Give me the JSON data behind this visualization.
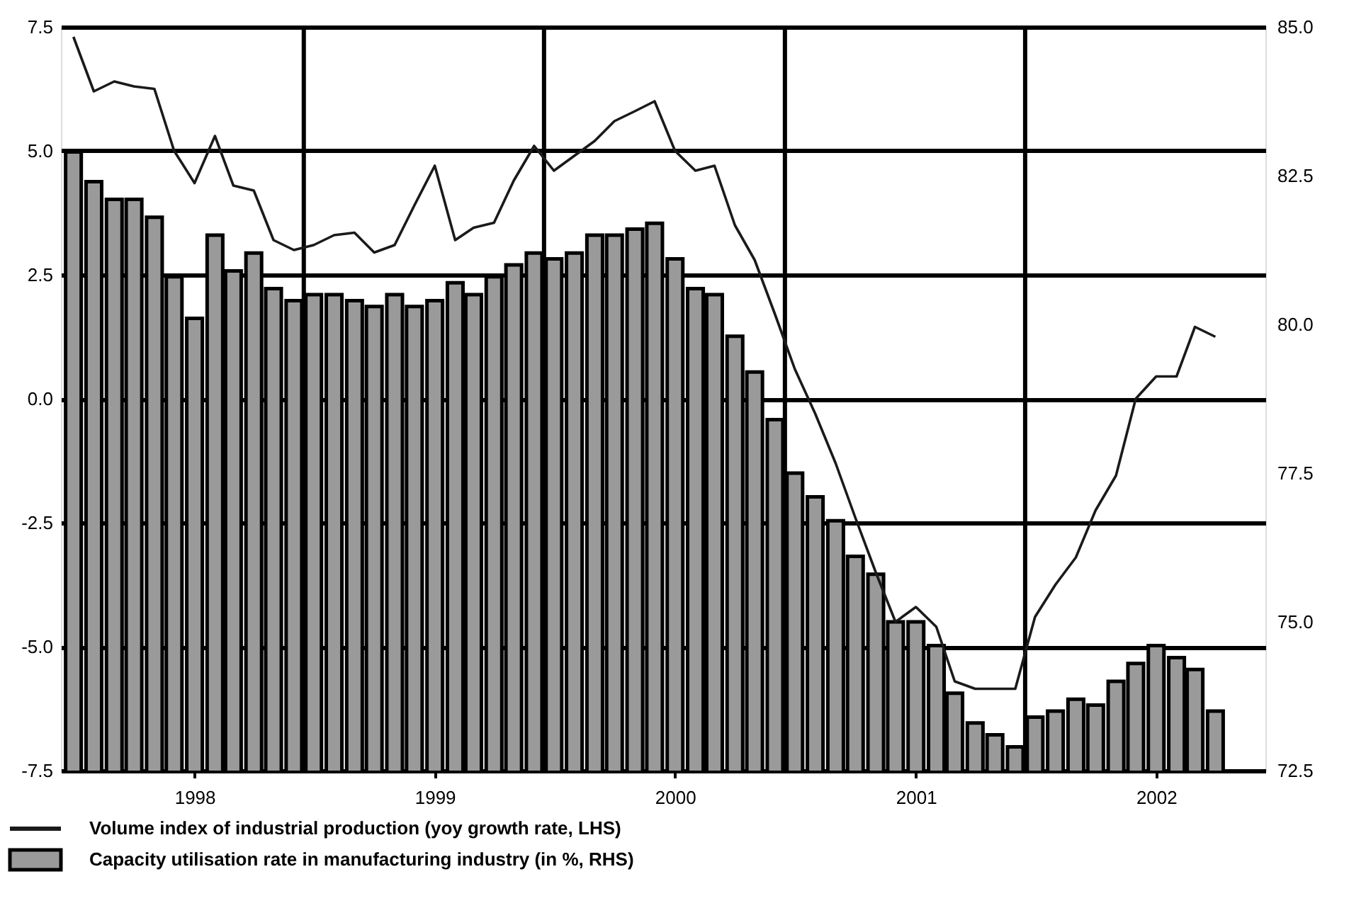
{
  "chart_data": {
    "type": "bar",
    "x": [
      "1997-07",
      "1997-08",
      "1997-09",
      "1997-10",
      "1997-11",
      "1997-12",
      "1998-01",
      "1998-02",
      "1998-03",
      "1998-04",
      "1998-05",
      "1998-06",
      "1998-07",
      "1998-08",
      "1998-09",
      "1998-10",
      "1998-11",
      "1998-12",
      "1999-01",
      "1999-02",
      "1999-03",
      "1999-04",
      "1999-05",
      "1999-06",
      "1999-07",
      "1999-08",
      "1999-09",
      "1999-10",
      "1999-11",
      "1999-12",
      "2000-01",
      "2000-02",
      "2000-03",
      "2000-04",
      "2000-05",
      "2000-06",
      "2000-07",
      "2000-08",
      "2000-09",
      "2000-10",
      "2000-11",
      "2000-12",
      "2001-01",
      "2001-02",
      "2001-03",
      "2001-04",
      "2001-05",
      "2001-06",
      "2001-07",
      "2001-08",
      "2001-09",
      "2001-10",
      "2001-11",
      "2001-12",
      "2002-01",
      "2002-02",
      "2002-03",
      "2002-04"
    ],
    "series": [
      {
        "name": "Capacity utilisation rate in manufacturing industry (in %, RHS)",
        "axis": "y2",
        "color": "#9a9a9a",
        "values": [
          82.9,
          82.4,
          82.1,
          82.1,
          81.8,
          80.8,
          80.1,
          81.5,
          80.9,
          81.2,
          80.6,
          80.4,
          80.5,
          80.5,
          80.4,
          80.3,
          80.5,
          80.3,
          80.4,
          80.7,
          80.5,
          80.8,
          81.0,
          81.2,
          81.1,
          81.2,
          81.5,
          81.5,
          81.6,
          81.7,
          81.1,
          80.6,
          80.5,
          79.8,
          79.2,
          78.4,
          77.5,
          77.1,
          76.7,
          76.1,
          75.8,
          75.0,
          75.0,
          74.6,
          73.8,
          73.3,
          73.1,
          72.9,
          73.4,
          73.5,
          73.7,
          73.6,
          74.0,
          74.3,
          74.6,
          74.4,
          74.2,
          73.5
        ]
      },
      {
        "name": "Volume index of industrial production (yoy growth rate, LHS)",
        "type": "line",
        "color": "#1a1a1a",
        "values": [
          7.3,
          6.2,
          6.4,
          6.3,
          6.25,
          5.0,
          4.35,
          5.3,
          4.3,
          4.2,
          3.2,
          3.0,
          3.1,
          3.3,
          3.35,
          2.95,
          3.1,
          3.9,
          4.7,
          3.2,
          3.45,
          3.55,
          4.4,
          5.1,
          4.6,
          4.9,
          5.2,
          5.6,
          5.8,
          6.0,
          5.0,
          4.6,
          4.7,
          3.5,
          2.8,
          1.7,
          0.6,
          -0.3,
          -1.3,
          -2.4,
          -3.5,
          -4.5,
          -4.2,
          -4.6,
          -5.7,
          -5.85,
          -5.85,
          -5.85,
          -4.4,
          -3.75,
          -3.2,
          -2.25,
          -1.55,
          0.0,
          0.45,
          0.45,
          1.45,
          1.25
        ]
      }
    ],
    "xlim": [
      "1997-06-12",
      "2002-06-16"
    ],
    "xticks": [
      {
        "value": "1998-01-01",
        "label": "1998"
      },
      {
        "value": "1999-01-01",
        "label": "1999"
      },
      {
        "value": "2000-01-01",
        "label": "2000"
      },
      {
        "value": "2001-01-01",
        "label": "2001"
      },
      {
        "value": "2002-01-01",
        "label": "2002"
      }
    ],
    "ref_lines": [
      {
        "axis": "x",
        "value": "1998-06-16",
        "color": "#000000"
      },
      {
        "axis": "x",
        "value": "1999-06-16",
        "color": "#000000"
      },
      {
        "axis": "x",
        "value": "2000-06-16",
        "color": "#000000"
      },
      {
        "axis": "x",
        "value": "2001-06-16",
        "color": "#000000"
      }
    ],
    "ylim": [
      -7.5,
      7.5
    ],
    "yticks": [
      {
        "value": -7.5,
        "label": "-7.5"
      },
      {
        "value": -5,
        "label": "-5.0"
      },
      {
        "value": -2.5,
        "label": "-2.5"
      },
      {
        "value": 0,
        "label": "0.0"
      },
      {
        "value": 2.5,
        "label": "2.5"
      },
      {
        "value": 5,
        "label": "5.0"
      },
      {
        "value": 7.5,
        "label": "7.5"
      }
    ],
    "y2lim": [
      72.5,
      85
    ],
    "y2ticks": [
      {
        "value": 72.5,
        "label": "72.5"
      },
      {
        "value": 75,
        "label": "75.0"
      },
      {
        "value": 77.5,
        "label": "77.5"
      },
      {
        "value": 80,
        "label": "80.0"
      },
      {
        "value": 82.5,
        "label": "82.5"
      },
      {
        "value": 85,
        "label": "85.0"
      }
    ],
    "grid": "y",
    "legend": "bottom"
  }
}
